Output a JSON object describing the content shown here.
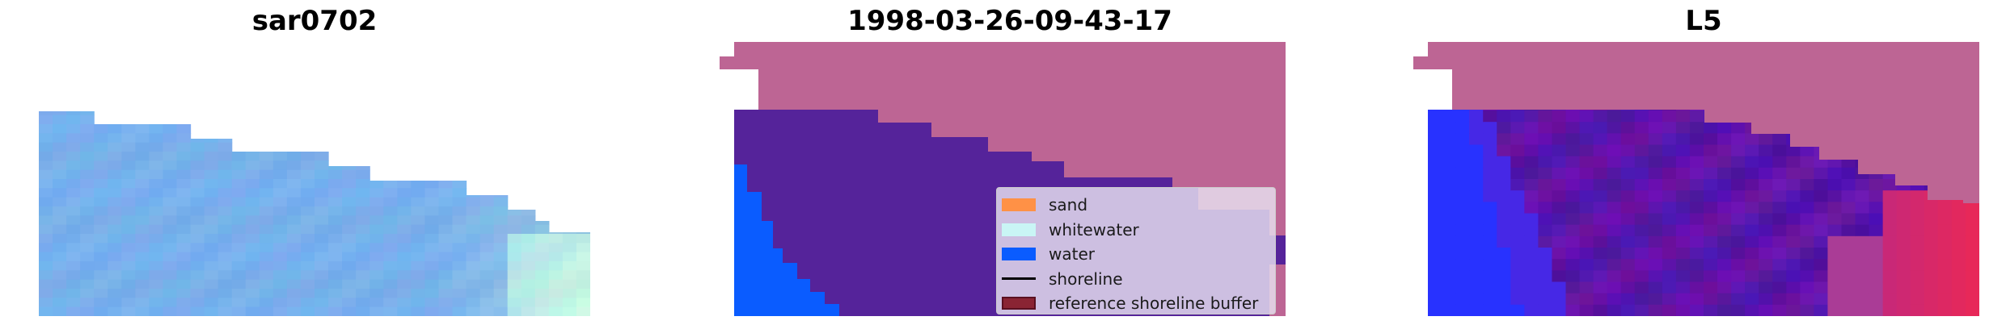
{
  "titles": {
    "image": "sar0702",
    "classification": "1998-03-26-09-43-17",
    "index": "L5"
  },
  "legend": {
    "items": [
      {
        "label": "sand",
        "kind": "patch",
        "color": "#ff9146"
      },
      {
        "label": "whitewater",
        "kind": "patch",
        "color": "#c9f5f5"
      },
      {
        "label": "water",
        "kind": "patch",
        "color": "#0a5cff"
      },
      {
        "label": "shoreline",
        "kind": "line",
        "color": "#000000"
      },
      {
        "label": "reference shoreline buffer",
        "kind": "patch",
        "color": "#8a2433",
        "edge": "#5a1020"
      }
    ]
  },
  "colors": {
    "reference_buffer_overlay": "#bd6594",
    "land_purple": "#55239a",
    "water_blue": "#0a5cff",
    "image_sky_blue": "#7ab2ec"
  }
}
